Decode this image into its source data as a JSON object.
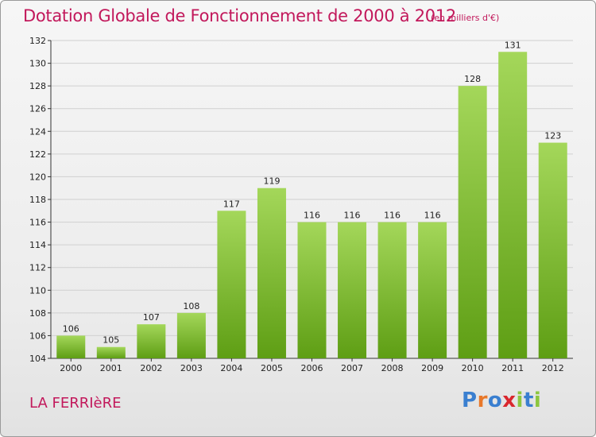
{
  "title": "Dotation Globale de Fonctionnement de 2000 à 2012",
  "subtitle": "(en milliers d'€)",
  "commune": "LA FERRIèRE",
  "logo": {
    "letters": [
      "P",
      "r",
      "o",
      "x",
      "i",
      "t",
      "i"
    ],
    "colors": [
      "#3a7fd0",
      "#e8782a",
      "#3a7fd0",
      "#d9272e",
      "#8cc63f",
      "#3a7fd0",
      "#8cc63f"
    ]
  },
  "colors": {
    "title": "#c2185b",
    "bar_top": "#a4d75a",
    "bar_bottom": "#5e9e14",
    "grid": "#d0d0d0"
  },
  "chart_data": {
    "type": "bar",
    "categories": [
      "2000",
      "2001",
      "2002",
      "2003",
      "2004",
      "2005",
      "2006",
      "2007",
      "2008",
      "2009",
      "2010",
      "2011",
      "2012"
    ],
    "values": [
      106,
      105,
      107,
      108,
      117,
      119,
      116,
      116,
      116,
      116,
      128,
      131,
      123
    ],
    "ylim": [
      104,
      132
    ],
    "yticks": [
      104,
      106,
      108,
      110,
      112,
      114,
      116,
      118,
      120,
      122,
      124,
      126,
      128,
      130,
      132
    ],
    "grid": true,
    "legend": "none"
  }
}
